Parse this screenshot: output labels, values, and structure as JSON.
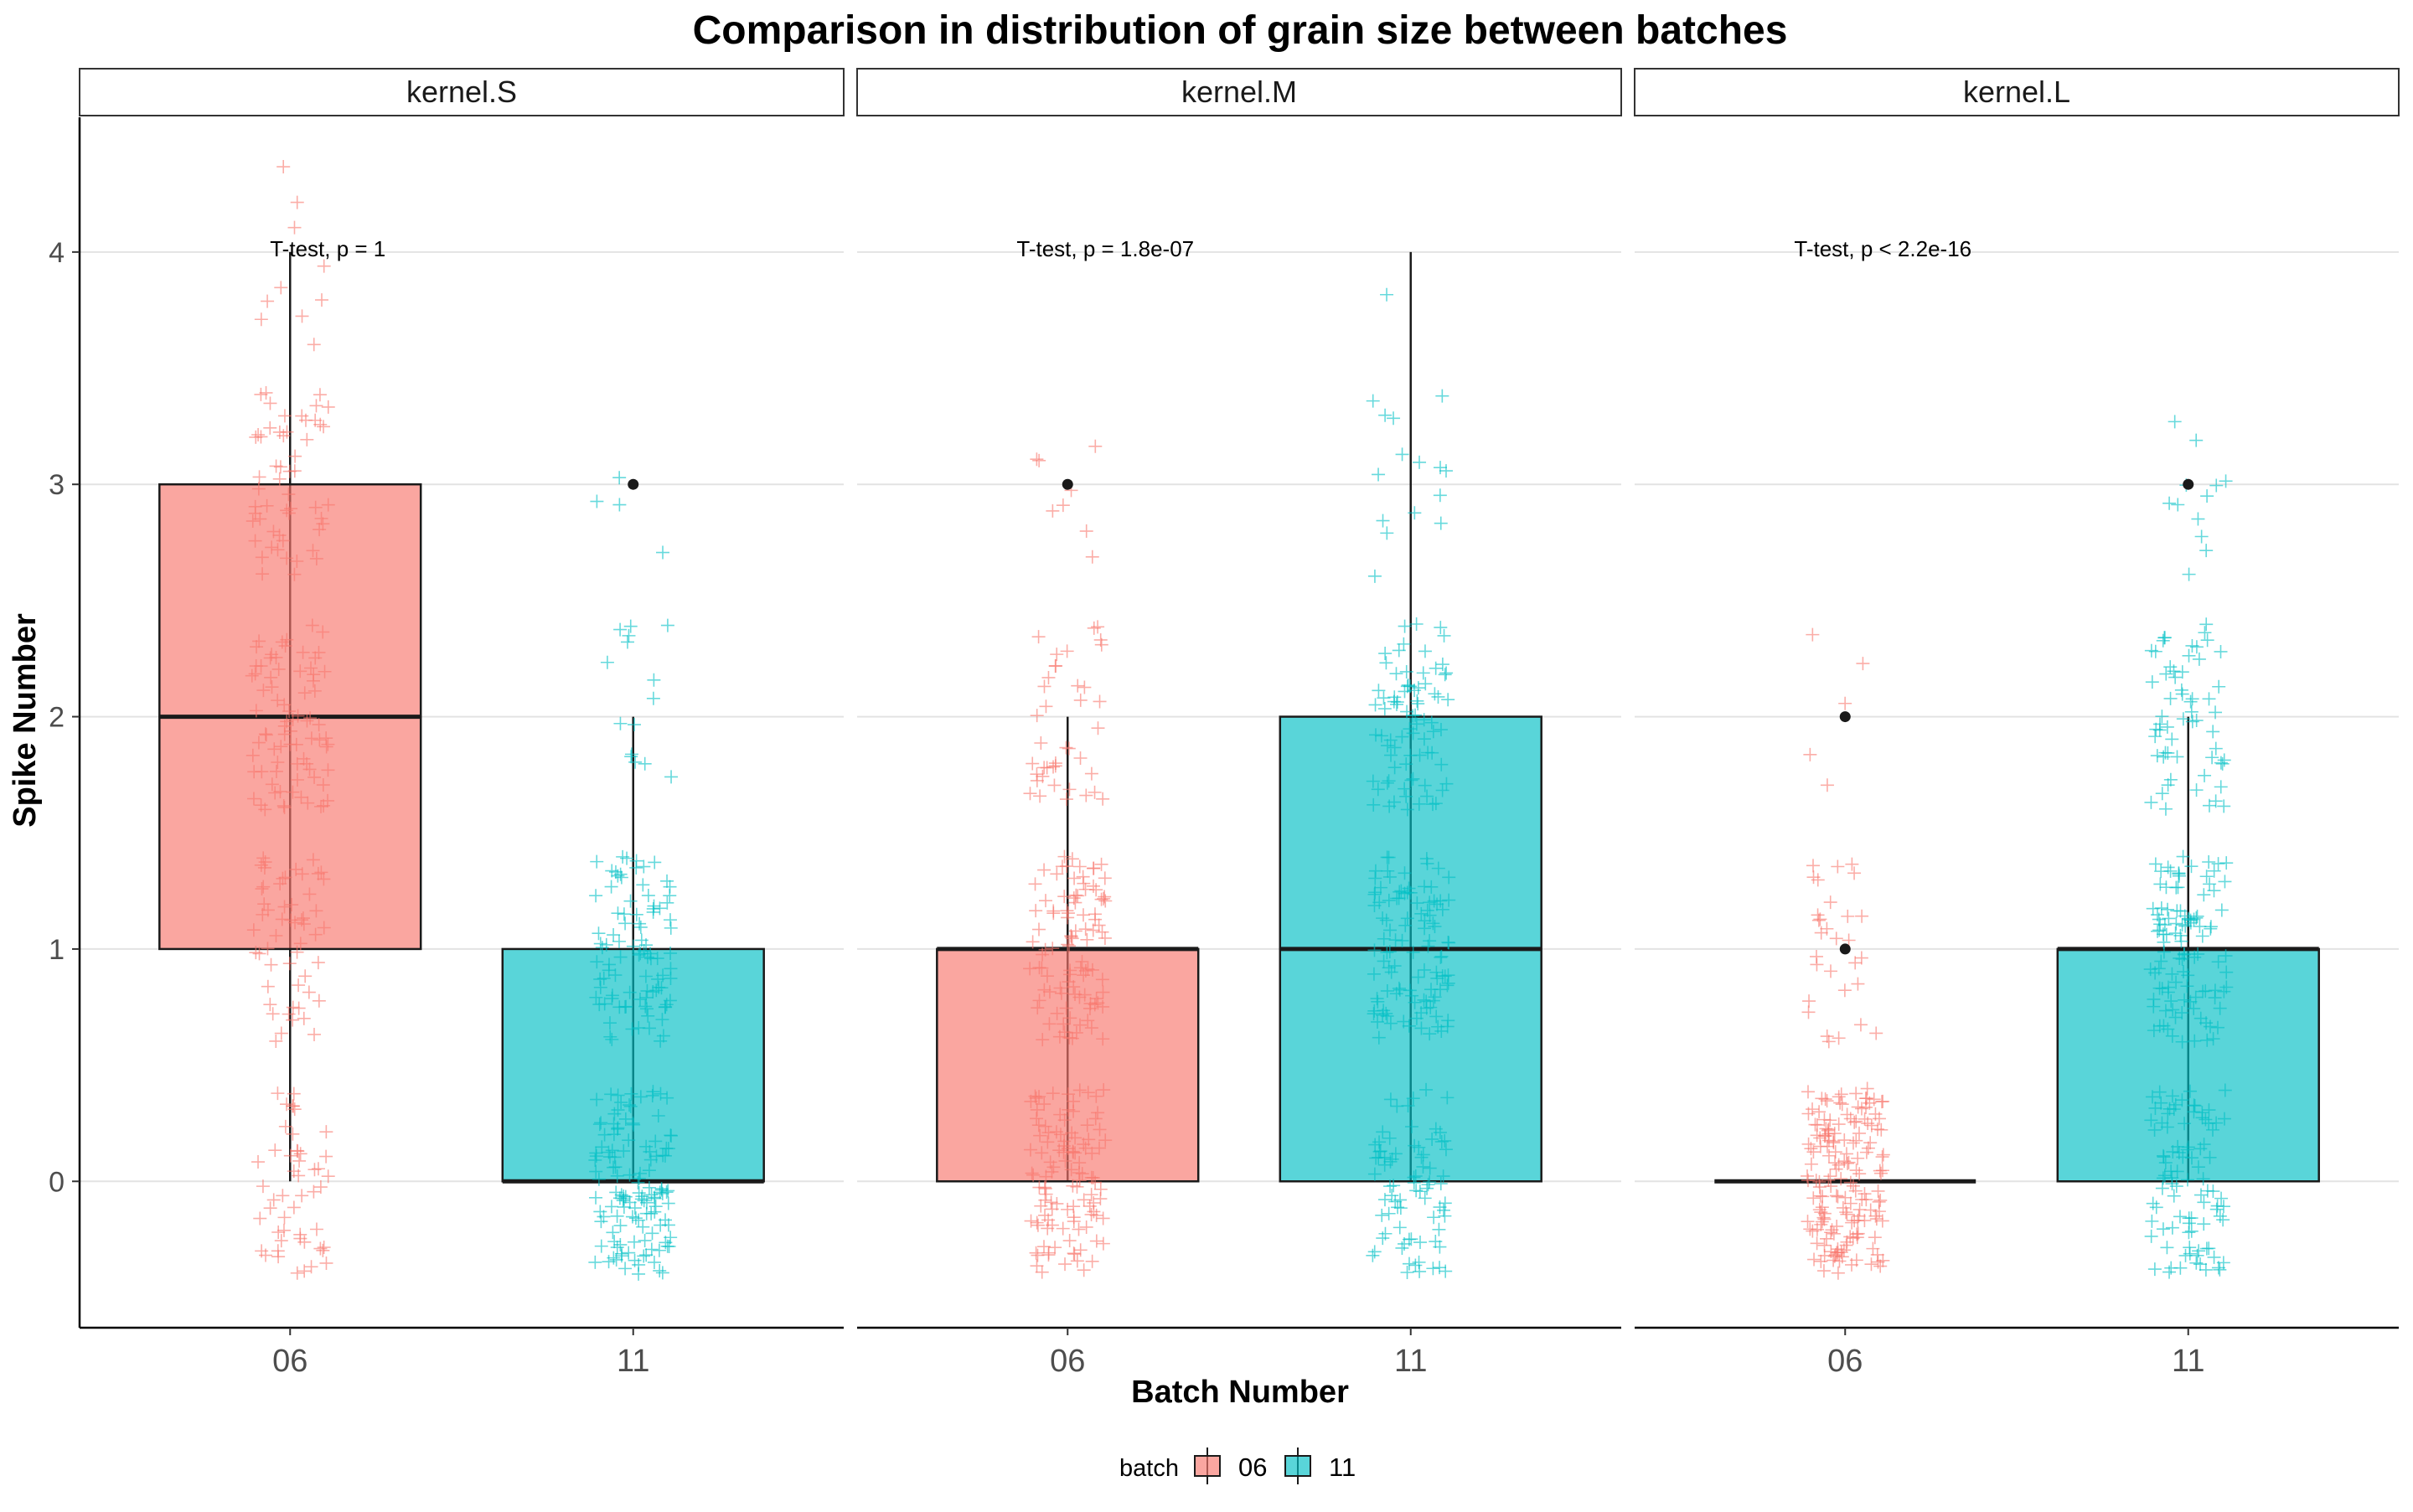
{
  "chart_data": {
    "type": "box",
    "title": "Comparison in distribution of grain size between batches",
    "xlabel": "Batch Number",
    "ylabel": "Spike Number",
    "y_ticks": [
      0,
      1,
      2,
      3,
      4
    ],
    "ylim": [
      -0.63,
      4.58
    ],
    "categories": [
      "06",
      "11"
    ],
    "grid": "horizontal-major",
    "legend": {
      "title": "batch",
      "position": "bottom",
      "entries": [
        {
          "label": "06",
          "color": "#F8766D"
        },
        {
          "label": "11",
          "color": "#00BFC4"
        }
      ]
    },
    "panels": [
      {
        "strip": "kernel.S",
        "annotation": "T-test, p = 1",
        "boxes": [
          {
            "batch": "06",
            "lower_whisker": 0,
            "q1": 1,
            "median": 2,
            "q3": 3,
            "upper_whisker": 4,
            "outliers": []
          },
          {
            "batch": "11",
            "lower_whisker": 0,
            "q1": 0,
            "median": 0,
            "q3": 1,
            "upper_whisker": 2,
            "outliers": [
              3
            ]
          }
        ]
      },
      {
        "strip": "kernel.M",
        "annotation": "T-test, p = 1.8e-07",
        "boxes": [
          {
            "batch": "06",
            "lower_whisker": 0,
            "q1": 0,
            "median": 1,
            "q3": 1,
            "upper_whisker": 2,
            "outliers": [
              3
            ]
          },
          {
            "batch": "11",
            "lower_whisker": 0,
            "q1": 0,
            "median": 1,
            "q3": 2,
            "upper_whisker": 4,
            "outliers": []
          }
        ]
      },
      {
        "strip": "kernel.L",
        "annotation": "T-test, p < 2.2e-16",
        "boxes": [
          {
            "batch": "06",
            "lower_whisker": 0,
            "q1": 0,
            "median": 0,
            "q3": 0,
            "upper_whisker": 0,
            "outliers": [
              1,
              2
            ]
          },
          {
            "batch": "11",
            "lower_whisker": 0,
            "q1": 0,
            "median": 1,
            "q3": 1,
            "upper_whisker": 2,
            "outliers": [
              3
            ]
          }
        ]
      }
    ],
    "jitter_counts": {
      "kernel.S": {
        "06": {
          "0": 50,
          "1": 55,
          "2": 80,
          "3": 55,
          "4": 10
        },
        "11": {
          "0": 130,
          "1": 95,
          "2": 15,
          "3": 4
        }
      },
      "kernel.M": {
        "06": {
          "0": 115,
          "1": 100,
          "2": 40,
          "3": 8
        },
        "11": {
          "0": 80,
          "1": 110,
          "2": 80,
          "3": 15,
          "4": 1
        }
      },
      "kernel.L": {
        "06": {
          "0": 170,
          "1": 30,
          "2": 5
        },
        "11": {
          "0": 95,
          "1": 110,
          "2": 60,
          "3": 12
        }
      }
    }
  }
}
